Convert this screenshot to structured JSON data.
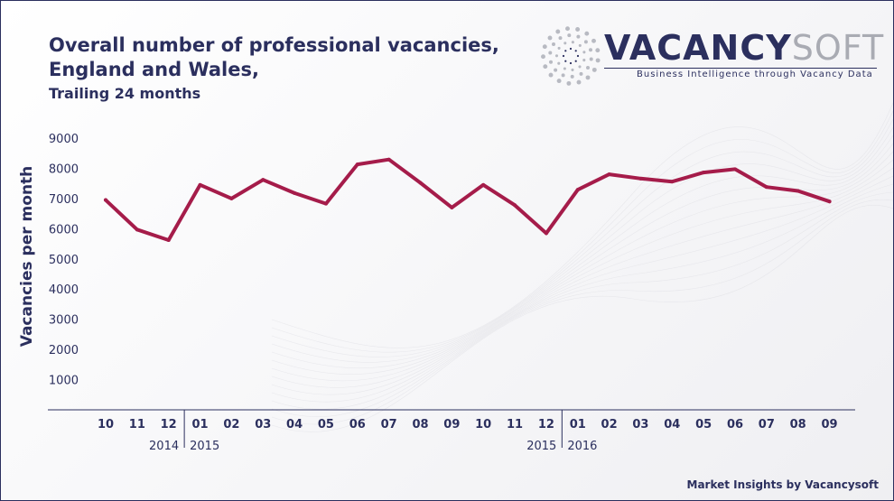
{
  "title_line1": "Overall number of professional vacancies,",
  "title_line2": "England and Wales,",
  "subtitle": "Trailing 24 months",
  "logo": {
    "brand_part1": "VACANCY",
    "brand_part2": "SOFT",
    "tagline": "Business Intelligence through Vacancy Data"
  },
  "footer": "Market Insights by Vacancysoft",
  "colors": {
    "line": "#a51c4a",
    "text": "#2b2f5e"
  },
  "chart_data": {
    "type": "line",
    "title": "Overall number of professional vacancies, England and Wales, Trailing 24 months",
    "xlabel": "",
    "ylabel": "Vacancies per month",
    "ylim": [
      0,
      9000
    ],
    "yticks": [
      1000,
      2000,
      3000,
      4000,
      5000,
      6000,
      7000,
      8000,
      9000
    ],
    "grid": false,
    "categories": [
      "10",
      "11",
      "12",
      "01",
      "02",
      "03",
      "04",
      "05",
      "06",
      "07",
      "08",
      "09",
      "10",
      "11",
      "12",
      "01",
      "02",
      "03",
      "04",
      "05",
      "06",
      "07",
      "08",
      "09"
    ],
    "year_groups": [
      {
        "label": "2014",
        "start": 0,
        "end": 2
      },
      {
        "label": "2015",
        "start": 3,
        "end": 14
      },
      {
        "label": "2015",
        "start": 3,
        "end": 14
      },
      {
        "label": "2016",
        "start": 15,
        "end": 23
      }
    ],
    "series": [
      {
        "values": [
          6950,
          5970,
          5620,
          7450,
          7000,
          7620,
          7180,
          6830,
          8130,
          8290,
          7520,
          6700,
          7450,
          6780,
          5850,
          7290,
          7800,
          7660,
          7560,
          7860,
          7970,
          7380,
          7250,
          6900
        ]
      }
    ]
  }
}
